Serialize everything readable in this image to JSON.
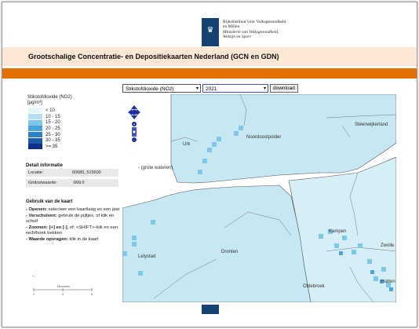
{
  "header": {
    "org_lines": [
      "Rijksinstituut voor Volksgezondheid",
      "en Milieu"
    ],
    "org_italic": [
      "Ministerie van Volksgezondheid,",
      "Welzijn en Sport"
    ]
  },
  "title": "Grootschalige Concentratie- en Depositiekaarten Nederland (GCN en GDN)",
  "controls": {
    "component": "Stikstofdioxide (NO2)",
    "year": "2021",
    "download_label": "download"
  },
  "legend": {
    "title_line1": "Stikstofdioxide (NO2)",
    "title_line2": "[µg/m³]",
    "classes": [
      {
        "label": "< 10",
        "color": "#e4f5fb"
      },
      {
        "label": "10 - 15",
        "color": "#b6e0f2"
      },
      {
        "label": "15 - 20",
        "color": "#7ec7e8"
      },
      {
        "label": "20 - 25",
        "color": "#4aa6d8"
      },
      {
        "label": "25 - 30",
        "color": "#2e80c3"
      },
      {
        "label": "30 - 35",
        "color": "#1d5aa8"
      },
      {
        "label": ">= 35",
        "color": "#0d2f8a"
      }
    ]
  },
  "detail": {
    "heading": "Detail informatie",
    "location_key": "Locatie:",
    "location_value": "60680, 515600",
    "grid_key": "Gridcelwaarde:",
    "grid_value": "-999.0"
  },
  "help": {
    "heading": "Gebruik van de kaart",
    "items": [
      {
        "term": "- Openen:",
        "text": " selecteer een kaartlaag en een jaar"
      },
      {
        "term": "- Verschuiven:",
        "text": " gebruik de pijltjes, of klik en schuif"
      },
      {
        "term": "- Zoomen: [+] en [-]",
        "text": ", of: <SHIFT>-klik en een rechthoek trekken"
      },
      {
        "term": "- Waarde opvragen:",
        "text": " klik in de kaart"
      }
    ]
  },
  "scale": {
    "unit": "kilometers",
    "ticks": [
      "0",
      "4",
      "8"
    ]
  },
  "map_labels": [
    {
      "name": "Urk",
      "id": "urk"
    },
    {
      "name": "Noordoostpolder",
      "id": "noordoostpolder"
    },
    {
      "name": "Steenwijkerland",
      "id": "steenwijkerland"
    },
    {
      "name": "- (grote wateren)",
      "id": "grote-wateren"
    },
    {
      "name": "Kampen",
      "id": "kampen"
    },
    {
      "name": "Lelystad",
      "id": "lelystad"
    },
    {
      "name": "Dronten",
      "id": "dronten"
    },
    {
      "name": "Zwolle",
      "id": "zwolle"
    },
    {
      "name": "Oldebroek",
      "id": "oldebroek"
    },
    {
      "name": "Hatten",
      "id": "hattem"
    }
  ]
}
